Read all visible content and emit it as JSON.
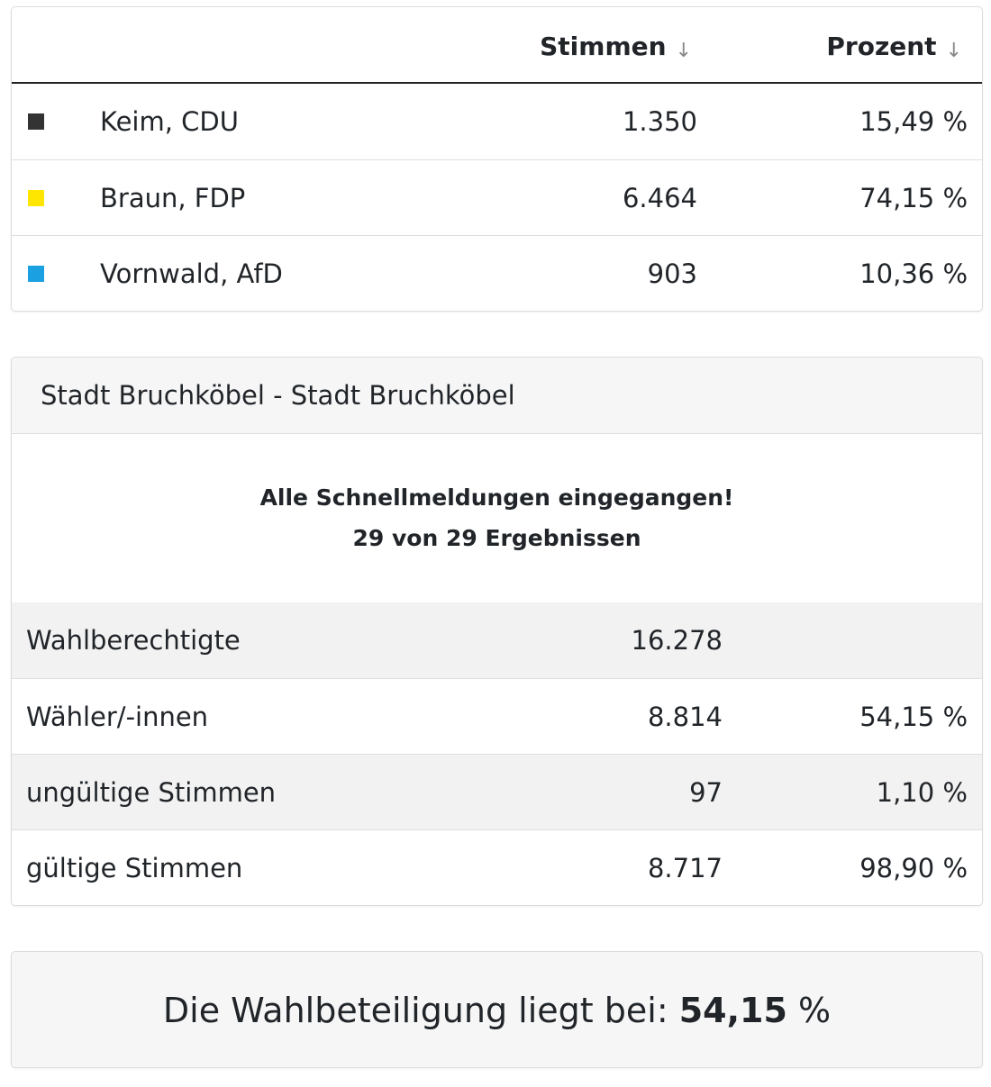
{
  "results": {
    "headers": {
      "votes": "Stimmen",
      "percent": "Prozent",
      "sort_glyph": "↓"
    },
    "rows": [
      {
        "name": "Keim, CDU",
        "votes": "1.350",
        "percent": "15,49 %",
        "color": "#333333"
      },
      {
        "name": "Braun, FDP",
        "votes": "6.464",
        "percent": "74,15 %",
        "color": "#ffe600"
      },
      {
        "name": "Vornwald, AfD",
        "votes": "903",
        "percent": "10,36 %",
        "color": "#1ba1e2"
      }
    ]
  },
  "city": {
    "title": "Stadt Bruchköbel - Stadt Bruchköbel",
    "status_line1": "Alle Schnellmeldungen eingegangen!",
    "status_line2": "29 von 29 Ergebnissen",
    "stats": [
      {
        "label": "Wahlberechtigte",
        "value": "16.278",
        "percent": ""
      },
      {
        "label": "Wähler/-innen",
        "value": "8.814",
        "percent": "54,15 %"
      },
      {
        "label": "ungültige Stimmen",
        "value": "97",
        "percent": "1,10 %"
      },
      {
        "label": "gültige Stimmen",
        "value": "8.717",
        "percent": "98,90 %"
      }
    ]
  },
  "turnout": {
    "prefix": "Die Wahlbeteiligung liegt bei: ",
    "value": "54,15",
    "suffix": " %"
  }
}
